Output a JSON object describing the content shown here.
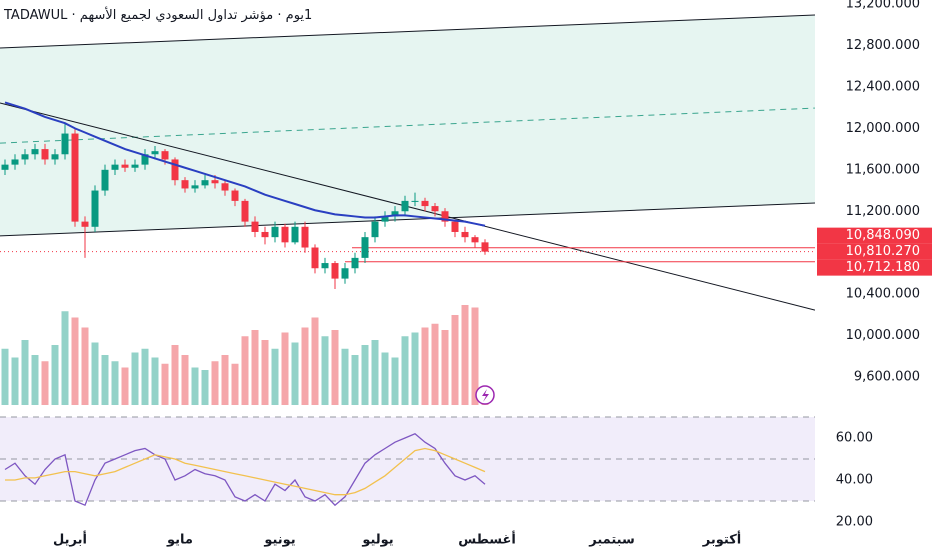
{
  "chart_data": [
    {
      "type": "candlestick",
      "title": "1يوم · مؤشر تداول السعودي لجميع الأسهم · TADAWUL",
      "x": [
        0,
        1,
        2,
        3,
        4,
        5,
        6,
        7,
        8,
        9,
        10,
        11,
        12,
        13,
        14,
        15,
        16,
        17,
        18,
        19,
        20,
        21,
        22,
        23,
        24,
        25,
        26,
        27,
        28,
        29,
        30,
        31,
        32,
        33,
        34,
        35,
        36,
        37,
        38,
        39,
        40,
        41,
        42,
        43,
        44,
        45,
        46,
        47,
        48
      ],
      "open": [
        11600,
        11650,
        11700,
        11750,
        11800,
        11700,
        11750,
        11950,
        11100,
        11050,
        11400,
        11600,
        11650,
        11620,
        11650,
        11750,
        11780,
        11700,
        11500,
        11420,
        11450,
        11500,
        11470,
        11400,
        11300,
        11100,
        11000,
        10950,
        11050,
        10900,
        11050,
        10850,
        10650,
        10700,
        10550,
        10650,
        10750,
        10950,
        11100,
        11150,
        11200,
        11300,
        11300,
        11250,
        11200,
        11100,
        11000,
        10950,
        10900
      ],
      "high": [
        11700,
        11750,
        11800,
        11850,
        11850,
        11800,
        12050,
        12000,
        11150,
        11450,
        11650,
        11700,
        11700,
        11700,
        11800,
        11830,
        11800,
        11720,
        11530,
        11500,
        11550,
        11550,
        11500,
        11420,
        11320,
        11150,
        11050,
        11100,
        11080,
        11100,
        11100,
        10880,
        10750,
        10720,
        10700,
        10800,
        11000,
        11150,
        11200,
        11250,
        11350,
        11380,
        11330,
        11280,
        11230,
        11120,
        11050,
        10970,
        10930
      ],
      "low": [
        11550,
        11600,
        11650,
        11700,
        11650,
        11650,
        11700,
        11050,
        10750,
        11000,
        11350,
        11550,
        11580,
        11580,
        11600,
        11700,
        11650,
        11450,
        11380,
        11380,
        11420,
        11420,
        11350,
        11250,
        11050,
        10950,
        10880,
        10900,
        10850,
        10880,
        10800,
        10600,
        10600,
        10450,
        10500,
        10600,
        10700,
        10900,
        11050,
        11100,
        11150,
        11250,
        11200,
        11150,
        11050,
        10950,
        10900,
        10850,
        10780
      ],
      "close": [
        11650,
        11700,
        11750,
        11800,
        11700,
        11750,
        11950,
        11100,
        11050,
        11400,
        11600,
        11650,
        11620,
        11650,
        11750,
        11780,
        11700,
        11500,
        11420,
        11450,
        11500,
        11470,
        11400,
        11300,
        11100,
        11000,
        10950,
        11050,
        10900,
        11050,
        10850,
        10650,
        10700,
        10550,
        10650,
        10750,
        10950,
        11100,
        11150,
        11200,
        11300,
        11300,
        11250,
        11200,
        11100,
        11000,
        10950,
        10900,
        10810.27
      ],
      "up_color": "#089981",
      "down_color": "#f23645",
      "volume": {
        "up_color": "#93d2c8",
        "down_color": "#f5a6aa",
        "values": [
          45,
          38,
          52,
          40,
          35,
          48,
          75,
          70,
          62,
          50,
          40,
          35,
          30,
          42,
          45,
          38,
          33,
          48,
          40,
          30,
          28,
          35,
          40,
          33,
          55,
          60,
          52,
          45,
          58,
          50,
          62,
          70,
          55,
          60,
          45,
          40,
          48,
          52,
          42,
          38,
          55,
          58,
          62,
          65,
          60,
          72,
          80,
          78,
          12
        ]
      },
      "moving_average": {
        "color": "#2a3fc1",
        "values": [
          12250,
          12220,
          12190,
          12150,
          12110,
          12080,
          12050,
          12000,
          11960,
          11920,
          11880,
          11840,
          11800,
          11770,
          11740,
          11710,
          11680,
          11650,
          11620,
          11590,
          11560,
          11530,
          11500,
          11470,
          11440,
          11400,
          11360,
          11330,
          11300,
          11270,
          11240,
          11210,
          11190,
          11170,
          11160,
          11150,
          11140,
          11140,
          11150,
          11160,
          11160,
          11150,
          11140,
          11130,
          11120,
          11110,
          11100,
          11080,
          11060
        ]
      },
      "channel": {
        "color": "#131722",
        "fill": "#e6f5f1",
        "mid_color": "#3aa58e",
        "upper": {
          "x": [
            -0.5,
            81
          ],
          "y": [
            12776,
            13094
          ]
        },
        "middle": {
          "x": [
            -0.5,
            81
          ],
          "y": [
            11858,
            12196
          ]
        },
        "lower": {
          "x": [
            -0.5,
            81
          ],
          "y": [
            10962,
            11280
          ]
        }
      },
      "trend_line": {
        "color": "#131722",
        "x": [
          -0.5,
          81
        ],
        "y": [
          12245,
          10246
        ]
      },
      "levels": [
        {
          "value": 10848.09,
          "label": "10,848.090",
          "x_start": 34.7
        },
        {
          "value": 10810.27,
          "label": "10,810.270",
          "x_start": -0.5
        },
        {
          "value": 10712.18,
          "label": "10,712.180",
          "x_start": 34.0
        }
      ],
      "level_color": "#f23645",
      "xlim": [
        -0.5,
        81
      ],
      "xticks": [
        {
          "value": 6.5,
          "label": "أبريل"
        },
        {
          "value": 17.5,
          "label": "مايو"
        },
        {
          "value": 27.5,
          "label": "يونيو"
        },
        {
          "value": 37.3,
          "label": "يوليو"
        },
        {
          "value": 48.2,
          "label": "أغسطس"
        },
        {
          "value": 60.7,
          "label": "سبتمبر"
        },
        {
          "value": 71.7,
          "label": "أكتوبر"
        }
      ],
      "ylim": [
        9330,
        13239
      ],
      "yticks": [
        {
          "value": 13200,
          "label": "13,200.000"
        },
        {
          "value": 12800,
          "label": "12,800.000"
        },
        {
          "value": 12400,
          "label": "12,400.000"
        },
        {
          "value": 12000,
          "label": "12,000.000"
        },
        {
          "value": 11600,
          "label": "11,600.000"
        },
        {
          "value": 11200,
          "label": "11,200.000"
        },
        {
          "value": 10800,
          "label": "10,800.000"
        },
        {
          "value": 10400,
          "label": "10,400.000"
        },
        {
          "value": 10000,
          "label": "10,000.000"
        },
        {
          "value": 9600,
          "label": "9,600.000"
        }
      ]
    },
    {
      "type": "line",
      "series": [
        {
          "name": "RSI",
          "color": "#7e57c2",
          "values": [
            45,
            48,
            42,
            38,
            45,
            50,
            52,
            30,
            28,
            40,
            48,
            50,
            52,
            54,
            55,
            52,
            50,
            40,
            42,
            45,
            43,
            42,
            40,
            32,
            30,
            33,
            30,
            38,
            35,
            40,
            32,
            30,
            33,
            28,
            32,
            40,
            48,
            52,
            55,
            58,
            60,
            62,
            58,
            55,
            48,
            42,
            40,
            42,
            38
          ]
        },
        {
          "name": "RSI MA",
          "color": "#f2c14e",
          "values": [
            40,
            40,
            41,
            41,
            42,
            43,
            44,
            44,
            43,
            42,
            43,
            44,
            46,
            48,
            50,
            52,
            51,
            50,
            48,
            47,
            46,
            45,
            44,
            43,
            42,
            41,
            40,
            39,
            38,
            37,
            36,
            35,
            34,
            33,
            33,
            34,
            36,
            39,
            42,
            46,
            50,
            54,
            55,
            54,
            52,
            50,
            48,
            46,
            44
          ]
        }
      ],
      "levels": [
        70,
        50,
        30
      ],
      "band_fill": "#f1edfa",
      "ylim": [
        20,
        70
      ],
      "yticks": [
        {
          "value": 60,
          "label": "60.00"
        },
        {
          "value": 40,
          "label": "40.00"
        },
        {
          "value": 20,
          "label": "20.00"
        }
      ]
    }
  ]
}
